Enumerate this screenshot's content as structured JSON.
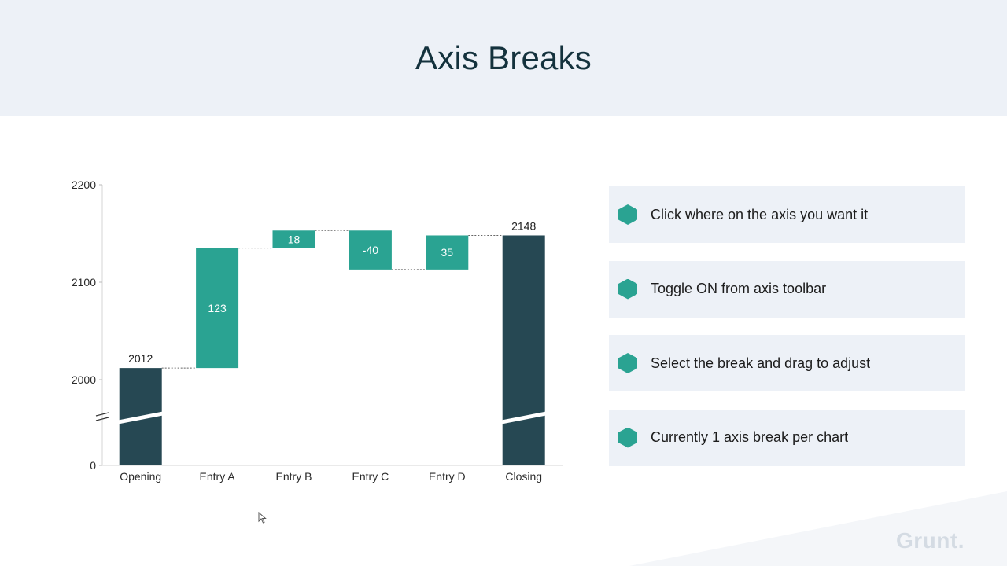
{
  "page": {
    "title": "Axis Breaks"
  },
  "steps": [
    {
      "text": "Click where on the axis you want it"
    },
    {
      "text": "Toggle ON from axis toolbar"
    },
    {
      "text": "Select the break and drag to adjust"
    },
    {
      "text": "Currently 1 axis break per chart"
    }
  ],
  "brand": "Grunt.",
  "colors": {
    "total": "#264853",
    "delta": "#2aa392",
    "header_bg": "#edf1f7"
  },
  "chart_data": {
    "type": "waterfall",
    "categories": [
      "Opening",
      "Entry A",
      "Entry B",
      "Entry C",
      "Entry D",
      "Closing"
    ],
    "values": [
      2012,
      123,
      18,
      -40,
      35,
      2148
    ],
    "kinds": [
      "total",
      "delta",
      "delta",
      "delta",
      "delta",
      "total"
    ],
    "labels": [
      "2012",
      "123",
      "18",
      "-40",
      "35",
      "2148"
    ],
    "y_ticks": [
      0,
      2000,
      2100,
      2200
    ],
    "y_tick_labels": [
      "0",
      "2000",
      "2100",
      "2200"
    ],
    "axis_break": true,
    "connectors": "dotted",
    "grid": false,
    "legend": "none"
  }
}
